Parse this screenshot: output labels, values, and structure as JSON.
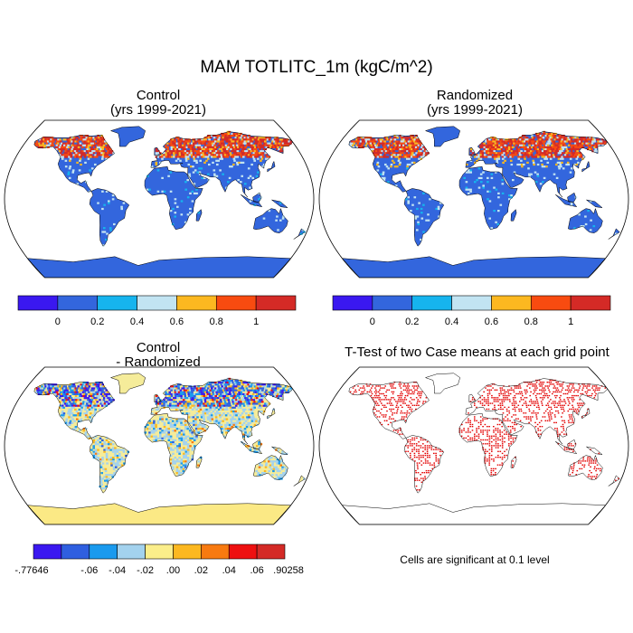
{
  "main_title": "MAM TOTLITC_1m (kgC/m^2)",
  "panels": [
    {
      "title_line1": "Control",
      "title_line2": "(yrs 1999-2021)"
    },
    {
      "title_line1": "Randomized",
      "title_line2": "(yrs 1999-2021)"
    },
    {
      "title_line1": "Control",
      "title_line2": "- Randomized"
    },
    {
      "title_line1": "T-Test of two Case means at each grid point",
      "title_line2": ""
    }
  ],
  "colorbar_abs": {
    "colors": [
      "#3a18f0",
      "#3366dd",
      "#16b4ee",
      "#c2e4f2",
      "#fcb820",
      "#f84b10",
      "#d42a26"
    ],
    "labels": [
      "0",
      "0.2",
      "0.4",
      "0.6",
      "0.8",
      "1"
    ]
  },
  "colorbar_diff": {
    "colors": [
      "#3a18f0",
      "#2f5fe0",
      "#1a9aee",
      "#a3d2ee",
      "#fbee8a",
      "#fcb820",
      "#f87a10",
      "#ee1010",
      "#d42a26"
    ],
    "labels": [
      "-.77646",
      "-.06",
      "-.04",
      "-.02",
      ".00",
      ".02",
      ".04",
      ".06",
      ".90258"
    ]
  },
  "significance_note": "Cells are significant at 0.1 level",
  "colors": {
    "land_base": "#3366dd",
    "diff_land": "#f5ec9a",
    "significant": "#e30000",
    "antarctica_diff": "#fbe985"
  }
}
